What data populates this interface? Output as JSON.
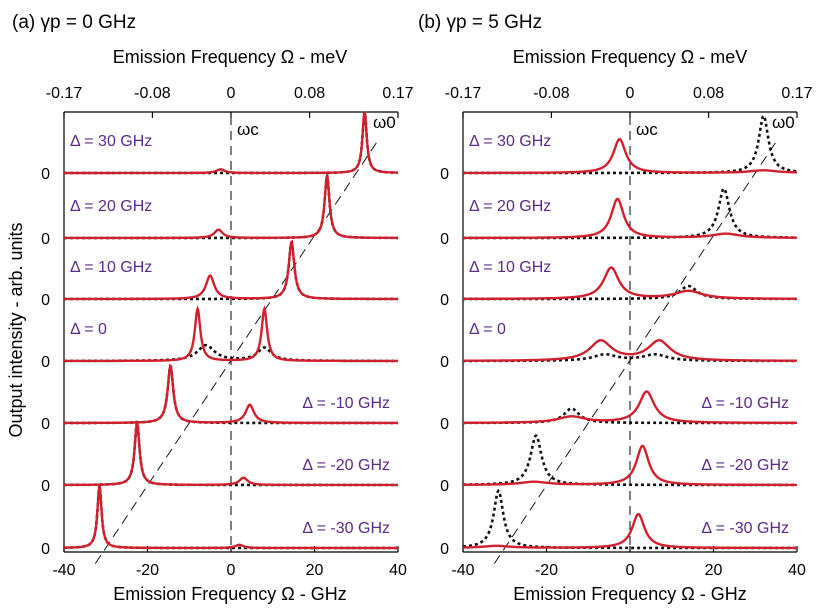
{
  "chart_data": {
    "type": "line",
    "ylabel": "Output intensity - arb. units",
    "xlabel_bottom": "Emission Frequency Ω - GHz",
    "xlabel_top": "Emission Frequency Ω - meV",
    "x_ticks_bottom": [
      -40,
      -20,
      0,
      20,
      40
    ],
    "x_ticks_top": [
      -0.17,
      -0.08,
      0,
      0.08,
      0.17
    ],
    "xlim": [
      -40,
      40
    ],
    "xlim_top_meV": [
      -0.17,
      0.17
    ],
    "baseline_tick_label": "0",
    "marker_cavity": "ωc",
    "marker_emitter": "ω0",
    "series_styles": {
      "solid": "#d0202e",
      "dotted": "#111111"
    },
    "panels": [
      {
        "title": "(a) γp = 0 GHz",
        "traces": [
          {
            "label": "Δ = 30 GHz",
            "detuning": 30,
            "solid": [
              {
                "x": -2.5,
                "y": 0.07,
                "w": 1.2
              },
              {
                "x": 32,
                "y": 1.2,
                "w": 0.6
              }
            ],
            "dotted": [
              {
                "x": 32,
                "y": 1.2,
                "w": 0.6
              }
            ]
          },
          {
            "label": "Δ = 20 GHz",
            "detuning": 20,
            "solid": [
              {
                "x": -3,
                "y": 0.16,
                "w": 1.2
              },
              {
                "x": 23,
                "y": 1.2,
                "w": 0.7
              }
            ],
            "dotted": [
              {
                "x": 23,
                "y": 1.2,
                "w": 0.7
              }
            ]
          },
          {
            "label": "Δ = 10 GHz",
            "detuning": 10,
            "solid": [
              {
                "x": -5,
                "y": 0.45,
                "w": 1.2
              },
              {
                "x": 14.5,
                "y": 1.1,
                "w": 0.8
              }
            ],
            "dotted": [
              {
                "x": 14.5,
                "y": 1.1,
                "w": 0.8
              }
            ]
          },
          {
            "label": "Δ = 0",
            "detuning": 0,
            "solid": [
              {
                "x": -8,
                "y": 1.0,
                "w": 0.8
              },
              {
                "x": 8,
                "y": 1.0,
                "w": 0.8
              }
            ],
            "dotted": [
              {
                "x": -6,
                "y": 0.3,
                "w": 2.5
              },
              {
                "x": 8,
                "y": 0.25,
                "w": 2.0
              }
            ]
          },
          {
            "label": "Δ = -10 GHz",
            "detuning": -10,
            "solid": [
              {
                "x": -14.5,
                "y": 1.1,
                "w": 0.8
              },
              {
                "x": 4.5,
                "y": 0.35,
                "w": 1.2
              }
            ],
            "dotted": [
              {
                "x": -14.5,
                "y": 1.1,
                "w": 0.8
              }
            ]
          },
          {
            "label": "Δ = -20 GHz",
            "detuning": -20,
            "solid": [
              {
                "x": -22.5,
                "y": 1.2,
                "w": 0.7
              },
              {
                "x": 3,
                "y": 0.14,
                "w": 1.2
              }
            ],
            "dotted": [
              {
                "x": -22.5,
                "y": 1.2,
                "w": 0.7
              }
            ]
          },
          {
            "label": "Δ = -30 GHz",
            "detuning": -30,
            "solid": [
              {
                "x": -31.5,
                "y": 1.2,
                "w": 0.6
              },
              {
                "x": 2,
                "y": 0.06,
                "w": 1.2
              }
            ],
            "dotted": [
              {
                "x": -31.5,
                "y": 1.2,
                "w": 0.6
              }
            ]
          }
        ]
      },
      {
        "title": "(b) γp = 5 GHz",
        "traces": [
          {
            "label": "Δ = 30 GHz",
            "detuning": 30,
            "solid": [
              {
                "x": -2.5,
                "y": 0.65,
                "w": 1.8
              },
              {
                "x": 32,
                "y": 0.05,
                "w": 4
              }
            ],
            "dotted": [
              {
                "x": 32,
                "y": 1.1,
                "w": 1.4
              }
            ]
          },
          {
            "label": "Δ = 20 GHz",
            "detuning": 20,
            "solid": [
              {
                "x": -3,
                "y": 0.75,
                "w": 1.8
              },
              {
                "x": 23,
                "y": 0.08,
                "w": 4
              }
            ],
            "dotted": [
              {
                "x": 22.5,
                "y": 0.95,
                "w": 1.6
              }
            ]
          },
          {
            "label": "Δ = 10 GHz",
            "detuning": 10,
            "solid": [
              {
                "x": -4.5,
                "y": 0.6,
                "w": 2.2
              },
              {
                "x": 14,
                "y": 0.15,
                "w": 4
              }
            ],
            "dotted": [
              {
                "x": 14,
                "y": 0.25,
                "w": 2.5
              }
            ]
          },
          {
            "label": "Δ = 0",
            "detuning": 0,
            "solid": [
              {
                "x": -7,
                "y": 0.38,
                "w": 3.2
              },
              {
                "x": 7,
                "y": 0.38,
                "w": 3.2
              }
            ],
            "dotted": [
              {
                "x": -6,
                "y": 0.12,
                "w": 3.5
              },
              {
                "x": 6,
                "y": 0.12,
                "w": 3.5
              }
            ]
          },
          {
            "label": "Δ = -10 GHz",
            "detuning": -10,
            "solid": [
              {
                "x": 4,
                "y": 0.6,
                "w": 2.2
              },
              {
                "x": -14,
                "y": 0.12,
                "w": 4
              }
            ],
            "dotted": [
              {
                "x": -14,
                "y": 0.28,
                "w": 2.2
              }
            ]
          },
          {
            "label": "Δ = -20 GHz",
            "detuning": -20,
            "solid": [
              {
                "x": 3,
                "y": 0.75,
                "w": 1.8
              },
              {
                "x": -23,
                "y": 0.06,
                "w": 4
              }
            ],
            "dotted": [
              {
                "x": -22.5,
                "y": 0.95,
                "w": 1.6
              }
            ]
          },
          {
            "label": "Δ = -30 GHz",
            "detuning": -30,
            "solid": [
              {
                "x": 2,
                "y": 0.65,
                "w": 1.8
              },
              {
                "x": -32,
                "y": 0.04,
                "w": 4
              }
            ],
            "dotted": [
              {
                "x": -31.5,
                "y": 1.1,
                "w": 1.4
              }
            ]
          }
        ]
      }
    ]
  }
}
